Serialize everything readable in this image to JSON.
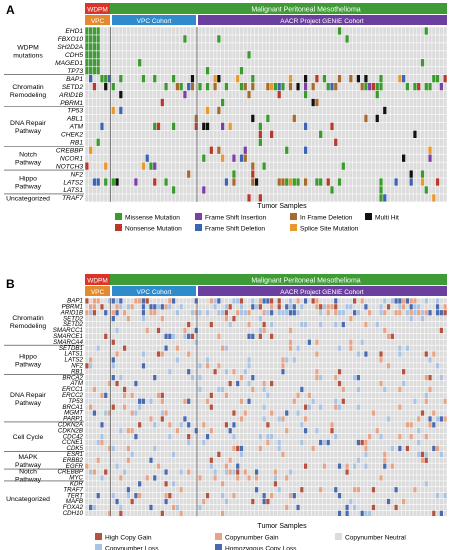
{
  "panels": [
    {
      "letter": "A",
      "header_top": "Malignant Peritoneal Mesothelioma",
      "header_wdpm": "WDPM",
      "header_vpc": "VPC",
      "cohort_vpc": "VPC Cohort",
      "cohort_aacr": "AACR Project GENIE Cohort",
      "xlabel": "Tumor Samples",
      "groups": [
        {
          "label": [
            "WDPM",
            "mutations"
          ],
          "genes": [
            "EHD1",
            "FBXO10",
            "SH2D2A",
            "CDH5",
            "MAGED1",
            "TP73"
          ]
        },
        {
          "label": [
            "Chromatin",
            "Remodeling"
          ],
          "genes": [
            "BAP1",
            "SETD2",
            "ARID1B",
            "PBRM1"
          ]
        },
        {
          "label": [
            "DNA Repair",
            "Pathway"
          ],
          "genes": [
            "TP53",
            "ABL1",
            "ATM",
            "CHEK2",
            "RB1"
          ]
        },
        {
          "label": [
            "Notch",
            "Pathway"
          ],
          "genes": [
            "CREBBP",
            "NCOR1",
            "NOTCH3"
          ]
        },
        {
          "label": [
            "Hippo",
            "Pathway"
          ],
          "genes": [
            "NF2",
            "LATS2",
            "LATS1"
          ]
        },
        {
          "label": [
            "Uncategorized"
          ],
          "genes": [
            "TRAF7"
          ]
        }
      ],
      "legend": [
        {
          "label": "Missense Mutation",
          "color": "#3a9a2e"
        },
        {
          "label": "Frame Shift Insertion",
          "color": "#7b3fa6"
        },
        {
          "label": "In Frame Deletion",
          "color": "#a66a2c"
        },
        {
          "label": "Multi Hit",
          "color": "#111111"
        },
        {
          "label": "Nonsense Mutation",
          "color": "#b8382c"
        },
        {
          "label": "Frame Shift Deletion",
          "color": "#3c64b4"
        },
        {
          "label": "Splice Site Mutation",
          "color": "#e8982c"
        }
      ]
    },
    {
      "letter": "B",
      "header_top": "Malignant Peritoneal Mesothelioma",
      "header_wdpm": "WDPM",
      "header_vpc": "VPC",
      "cohort_vpc": "VPC Cohort",
      "cohort_aacr": "AACR Project GENIE Cohort",
      "xlabel": "Tumor Samples",
      "groups": [
        {
          "label": [
            "Chromatin",
            "Remodeling"
          ],
          "genes": [
            "BAP1",
            "PBRM1",
            "ARID1B",
            "SETD2",
            "SETD2",
            "SMARCC1",
            "SMARCE1",
            "SMARCA4"
          ]
        },
        {
          "label": [
            "Hippo",
            "Pathway"
          ],
          "genes": [
            "SETDB1",
            "LATS1",
            "LATS2",
            "NF2",
            "RB1"
          ]
        },
        {
          "label": [
            "DNA Repair",
            "Pathway"
          ],
          "genes": [
            "BRCA2",
            "ATM",
            "ERCC1",
            "ERCC2",
            "TP53",
            "BRCA1",
            "MGMT",
            "PARP1"
          ]
        },
        {
          "label": [
            "Cell Cycle"
          ],
          "genes": [
            "CDKN2A",
            "CDKN2B",
            "CDC42",
            "CCNE1",
            "CDK5"
          ]
        },
        {
          "label": [
            "MAPK",
            "Pathway"
          ],
          "genes": [
            "ESR1",
            "ERBB2",
            "EGFR"
          ]
        },
        {
          "label": [
            "Notch",
            "Pathway"
          ],
          "genes": [
            "CREBBP",
            "MYC"
          ]
        },
        {
          "label": [
            "Uncategorized"
          ],
          "genes": [
            "KDR",
            "TRAF7",
            "TERT",
            "MAFB",
            "FOXA2",
            "CDH10"
          ]
        }
      ],
      "legend": [
        {
          "label": "High Copy Gain",
          "color": "#b5523f"
        },
        {
          "label": "Copynumber Gain",
          "color": "#e7a386"
        },
        {
          "label": "Copynumber Neutral",
          "color": "#dcdcdc"
        },
        {
          "label": "Copynumber Loss",
          "color": "#a8c3e3"
        },
        {
          "label": "Homozygous Copy Loss",
          "color": "#4a6ab0"
        }
      ]
    }
  ],
  "colors": {
    "header_green": "#3f9b35",
    "wdpm_red": "#d9352b",
    "vpc_orange": "#e38a2e",
    "vpc_blue": "#2f8bcc",
    "aacr_purple": "#6a3f9e",
    "empty_cell": "#dcdcdc",
    "wdpm_cell": "#3f9b35"
  }
}
